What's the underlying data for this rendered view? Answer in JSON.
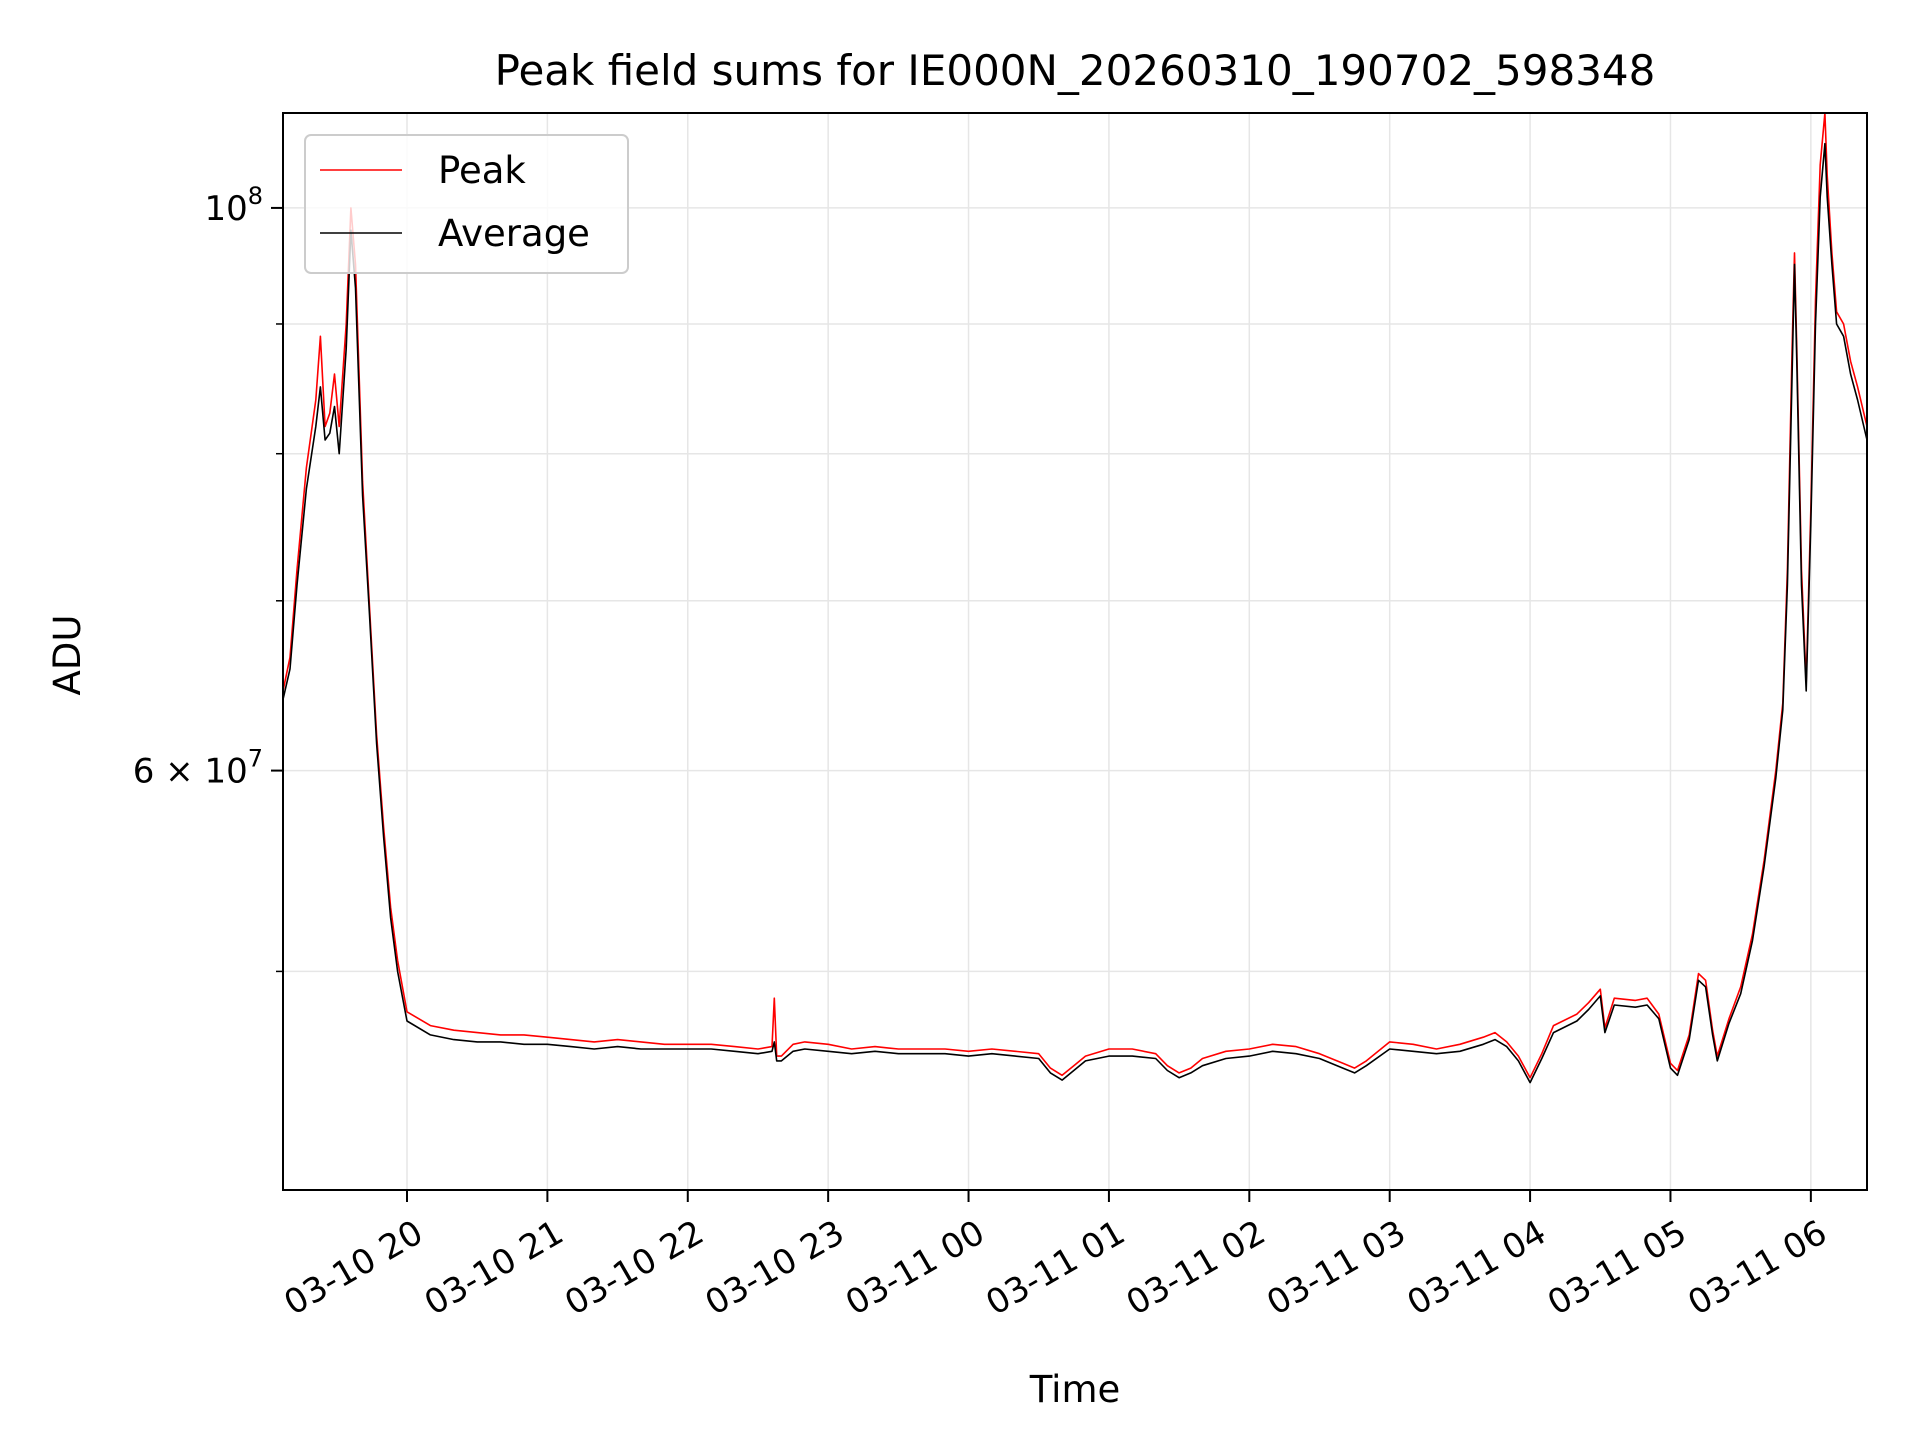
{
  "chart_data": {
    "type": "line",
    "title": "Peak field sums for IE000N_20260310_190702_598348",
    "xlabel": "Time",
    "ylabel": "ADU",
    "yscale": "log",
    "ylim": [
      41000000,
      109000000
    ],
    "xlim": [
      "2026-03-10T19:07",
      "2026-03-11T06:24"
    ],
    "grid": true,
    "legend_position": "upper left",
    "x_tick_labels": [
      "03-10 20",
      "03-10 21",
      "03-10 22",
      "03-10 23",
      "03-11 00",
      "03-11 01",
      "03-11 02",
      "03-11 03",
      "03-11 04",
      "03-11 05",
      "03-11 06"
    ],
    "y_tick_labels": [
      {
        "value": 100000000,
        "mantissa": "",
        "exp": "8"
      },
      {
        "value": 60000000,
        "mantissa": "6",
        "exp": "7"
      }
    ],
    "y_minor_ticks": [
      50000000,
      70000000,
      80000000,
      90000000
    ],
    "series": [
      {
        "name": "Peak",
        "color": "#ff0000",
        "points": [
          [
            "2026-03-10T19:07",
            64500000
          ],
          [
            "2026-03-10T19:10",
            66500000
          ],
          [
            "2026-03-10T19:13",
            72000000
          ],
          [
            "2026-03-10T19:17",
            79000000
          ],
          [
            "2026-03-10T19:21",
            84000000
          ],
          [
            "2026-03-10T19:23",
            89000000
          ],
          [
            "2026-03-10T19:25",
            82000000
          ],
          [
            "2026-03-10T19:27",
            83000000
          ],
          [
            "2026-03-10T19:29",
            86000000
          ],
          [
            "2026-03-10T19:31",
            82000000
          ],
          [
            "2026-03-10T19:34",
            90000000
          ],
          [
            "2026-03-10T19:36",
            100000000
          ],
          [
            "2026-03-10T19:38",
            95000000
          ],
          [
            "2026-03-10T19:41",
            78000000
          ],
          [
            "2026-03-10T19:44",
            69500000
          ],
          [
            "2026-03-10T19:47",
            62000000
          ],
          [
            "2026-03-10T19:50",
            57000000
          ],
          [
            "2026-03-10T19:53",
            53000000
          ],
          [
            "2026-03-10T19:56",
            50500000
          ],
          [
            "2026-03-10T20:00",
            48200000
          ],
          [
            "2026-03-10T20:10",
            47600000
          ],
          [
            "2026-03-10T20:20",
            47400000
          ],
          [
            "2026-03-10T20:30",
            47300000
          ],
          [
            "2026-03-10T20:40",
            47200000
          ],
          [
            "2026-03-10T20:50",
            47200000
          ],
          [
            "2026-03-10T21:00",
            47100000
          ],
          [
            "2026-03-10T21:10",
            47000000
          ],
          [
            "2026-03-10T21:20",
            46900000
          ],
          [
            "2026-03-10T21:30",
            47000000
          ],
          [
            "2026-03-10T21:40",
            46900000
          ],
          [
            "2026-03-10T21:50",
            46800000
          ],
          [
            "2026-03-10T22:00",
            46800000
          ],
          [
            "2026-03-10T22:10",
            46800000
          ],
          [
            "2026-03-10T22:20",
            46700000
          ],
          [
            "2026-03-10T22:30",
            46600000
          ],
          [
            "2026-03-10T22:36",
            46700000
          ],
          [
            "2026-03-10T22:37",
            48800000
          ],
          [
            "2026-03-10T22:38",
            46300000
          ],
          [
            "2026-03-10T22:40",
            46300000
          ],
          [
            "2026-03-10T22:45",
            46800000
          ],
          [
            "2026-03-10T22:50",
            46900000
          ],
          [
            "2026-03-10T23:00",
            46800000
          ],
          [
            "2026-03-10T23:10",
            46600000
          ],
          [
            "2026-03-10T23:20",
            46700000
          ],
          [
            "2026-03-10T23:30",
            46600000
          ],
          [
            "2026-03-10T23:40",
            46600000
          ],
          [
            "2026-03-10T23:50",
            46600000
          ],
          [
            "2026-03-11T00:00",
            46500000
          ],
          [
            "2026-03-11T00:10",
            46600000
          ],
          [
            "2026-03-11T00:20",
            46500000
          ],
          [
            "2026-03-11T00:30",
            46400000
          ],
          [
            "2026-03-11T00:35",
            45800000
          ],
          [
            "2026-03-11T00:40",
            45500000
          ],
          [
            "2026-03-11T00:45",
            45900000
          ],
          [
            "2026-03-11T00:50",
            46300000
          ],
          [
            "2026-03-11T01:00",
            46600000
          ],
          [
            "2026-03-11T01:10",
            46600000
          ],
          [
            "2026-03-11T01:20",
            46400000
          ],
          [
            "2026-03-11T01:25",
            45900000
          ],
          [
            "2026-03-11T01:30",
            45600000
          ],
          [
            "2026-03-11T01:35",
            45800000
          ],
          [
            "2026-03-11T01:40",
            46200000
          ],
          [
            "2026-03-11T01:50",
            46500000
          ],
          [
            "2026-03-11T02:00",
            46600000
          ],
          [
            "2026-03-11T02:10",
            46800000
          ],
          [
            "2026-03-11T02:20",
            46700000
          ],
          [
            "2026-03-11T02:30",
            46400000
          ],
          [
            "2026-03-11T02:40",
            46000000
          ],
          [
            "2026-03-11T02:45",
            45800000
          ],
          [
            "2026-03-11T02:50",
            46100000
          ],
          [
            "2026-03-11T03:00",
            46900000
          ],
          [
            "2026-03-11T03:10",
            46800000
          ],
          [
            "2026-03-11T03:20",
            46600000
          ],
          [
            "2026-03-11T03:30",
            46800000
          ],
          [
            "2026-03-11T03:40",
            47100000
          ],
          [
            "2026-03-11T03:45",
            47300000
          ],
          [
            "2026-03-11T03:50",
            46900000
          ],
          [
            "2026-03-11T03:55",
            46300000
          ],
          [
            "2026-03-11T04:00",
            45400000
          ],
          [
            "2026-03-11T04:05",
            46400000
          ],
          [
            "2026-03-11T04:10",
            47600000
          ],
          [
            "2026-03-11T04:20",
            48100000
          ],
          [
            "2026-03-11T04:25",
            48600000
          ],
          [
            "2026-03-11T04:30",
            49200000
          ],
          [
            "2026-03-11T04:32",
            47500000
          ],
          [
            "2026-03-11T04:36",
            48800000
          ],
          [
            "2026-03-11T04:45",
            48700000
          ],
          [
            "2026-03-11T04:50",
            48800000
          ],
          [
            "2026-03-11T04:55",
            48100000
          ],
          [
            "2026-03-11T05:00",
            46000000
          ],
          [
            "2026-03-11T05:03",
            45700000
          ],
          [
            "2026-03-11T05:08",
            47200000
          ],
          [
            "2026-03-11T05:12",
            49900000
          ],
          [
            "2026-03-11T05:15",
            49600000
          ],
          [
            "2026-03-11T05:18",
            47400000
          ],
          [
            "2026-03-11T05:20",
            46300000
          ],
          [
            "2026-03-11T05:25",
            47900000
          ],
          [
            "2026-03-11T05:30",
            49300000
          ],
          [
            "2026-03-11T05:35",
            51700000
          ],
          [
            "2026-03-11T05:40",
            55300000
          ],
          [
            "2026-03-11T05:45",
            60000000
          ],
          [
            "2026-03-11T05:48",
            63800000
          ],
          [
            "2026-03-11T05:50",
            72000000
          ],
          [
            "2026-03-11T05:52",
            88000000
          ],
          [
            "2026-03-11T05:53",
            96000000
          ],
          [
            "2026-03-11T05:54",
            88000000
          ],
          [
            "2026-03-11T05:56",
            72000000
          ],
          [
            "2026-03-11T05:58",
            65000000
          ],
          [
            "2026-03-11T06:00",
            76000000
          ],
          [
            "2026-03-11T06:02",
            92000000
          ],
          [
            "2026-03-11T06:04",
            104000000
          ],
          [
            "2026-03-11T06:06",
            109000000
          ],
          [
            "2026-03-11T06:07",
            103000000
          ],
          [
            "2026-03-11T06:09",
            96000000
          ],
          [
            "2026-03-11T06:11",
            91000000
          ],
          [
            "2026-03-11T06:14",
            90000000
          ],
          [
            "2026-03-11T06:17",
            87000000
          ],
          [
            "2026-03-11T06:20",
            85000000
          ],
          [
            "2026-03-11T06:24",
            82000000
          ]
        ]
      },
      {
        "name": "Average",
        "color": "#000000",
        "points": [
          [
            "2026-03-10T19:07",
            64000000
          ],
          [
            "2026-03-10T19:10",
            65800000
          ],
          [
            "2026-03-10T19:13",
            71000000
          ],
          [
            "2026-03-10T19:17",
            77500000
          ],
          [
            "2026-03-10T19:21",
            82000000
          ],
          [
            "2026-03-10T19:23",
            85000000
          ],
          [
            "2026-03-10T19:25",
            81000000
          ],
          [
            "2026-03-10T19:27",
            81500000
          ],
          [
            "2026-03-10T19:29",
            83500000
          ],
          [
            "2026-03-10T19:31",
            80000000
          ],
          [
            "2026-03-10T19:34",
            88000000
          ],
          [
            "2026-03-10T19:36",
            98000000
          ],
          [
            "2026-03-10T19:38",
            93000000
          ],
          [
            "2026-03-10T19:41",
            77000000
          ],
          [
            "2026-03-10T19:44",
            69000000
          ],
          [
            "2026-03-10T19:47",
            61500000
          ],
          [
            "2026-03-10T19:50",
            56500000
          ],
          [
            "2026-03-10T19:53",
            52500000
          ],
          [
            "2026-03-10T19:56",
            50000000
          ],
          [
            "2026-03-10T20:00",
            47800000
          ],
          [
            "2026-03-10T20:10",
            47200000
          ],
          [
            "2026-03-10T20:20",
            47000000
          ],
          [
            "2026-03-10T20:30",
            46900000
          ],
          [
            "2026-03-10T20:40",
            46900000
          ],
          [
            "2026-03-10T20:50",
            46800000
          ],
          [
            "2026-03-10T21:00",
            46800000
          ],
          [
            "2026-03-10T21:10",
            46700000
          ],
          [
            "2026-03-10T21:20",
            46600000
          ],
          [
            "2026-03-10T21:30",
            46700000
          ],
          [
            "2026-03-10T21:40",
            46600000
          ],
          [
            "2026-03-10T21:50",
            46600000
          ],
          [
            "2026-03-10T22:00",
            46600000
          ],
          [
            "2026-03-10T22:10",
            46600000
          ],
          [
            "2026-03-10T22:20",
            46500000
          ],
          [
            "2026-03-10T22:30",
            46400000
          ],
          [
            "2026-03-10T22:36",
            46500000
          ],
          [
            "2026-03-10T22:37",
            46900000
          ],
          [
            "2026-03-10T22:38",
            46100000
          ],
          [
            "2026-03-10T22:40",
            46100000
          ],
          [
            "2026-03-10T22:45",
            46500000
          ],
          [
            "2026-03-10T22:50",
            46600000
          ],
          [
            "2026-03-10T23:00",
            46500000
          ],
          [
            "2026-03-10T23:10",
            46400000
          ],
          [
            "2026-03-10T23:20",
            46500000
          ],
          [
            "2026-03-10T23:30",
            46400000
          ],
          [
            "2026-03-10T23:40",
            46400000
          ],
          [
            "2026-03-10T23:50",
            46400000
          ],
          [
            "2026-03-11T00:00",
            46300000
          ],
          [
            "2026-03-11T00:10",
            46400000
          ],
          [
            "2026-03-11T00:20",
            46300000
          ],
          [
            "2026-03-11T00:30",
            46200000
          ],
          [
            "2026-03-11T00:35",
            45600000
          ],
          [
            "2026-03-11T00:40",
            45300000
          ],
          [
            "2026-03-11T00:45",
            45700000
          ],
          [
            "2026-03-11T00:50",
            46100000
          ],
          [
            "2026-03-11T01:00",
            46300000
          ],
          [
            "2026-03-11T01:10",
            46300000
          ],
          [
            "2026-03-11T01:20",
            46200000
          ],
          [
            "2026-03-11T01:25",
            45700000
          ],
          [
            "2026-03-11T01:30",
            45400000
          ],
          [
            "2026-03-11T01:35",
            45600000
          ],
          [
            "2026-03-11T01:40",
            45900000
          ],
          [
            "2026-03-11T01:50",
            46200000
          ],
          [
            "2026-03-11T02:00",
            46300000
          ],
          [
            "2026-03-11T02:10",
            46500000
          ],
          [
            "2026-03-11T02:20",
            46400000
          ],
          [
            "2026-03-11T02:30",
            46200000
          ],
          [
            "2026-03-11T02:40",
            45800000
          ],
          [
            "2026-03-11T02:45",
            45600000
          ],
          [
            "2026-03-11T02:50",
            45900000
          ],
          [
            "2026-03-11T03:00",
            46600000
          ],
          [
            "2026-03-11T03:10",
            46500000
          ],
          [
            "2026-03-11T03:20",
            46400000
          ],
          [
            "2026-03-11T03:30",
            46500000
          ],
          [
            "2026-03-11T03:40",
            46800000
          ],
          [
            "2026-03-11T03:45",
            47000000
          ],
          [
            "2026-03-11T03:50",
            46700000
          ],
          [
            "2026-03-11T03:55",
            46100000
          ],
          [
            "2026-03-11T04:00",
            45200000
          ],
          [
            "2026-03-11T04:05",
            46200000
          ],
          [
            "2026-03-11T04:10",
            47300000
          ],
          [
            "2026-03-11T04:20",
            47800000
          ],
          [
            "2026-03-11T04:25",
            48300000
          ],
          [
            "2026-03-11T04:30",
            48900000
          ],
          [
            "2026-03-11T04:32",
            47300000
          ],
          [
            "2026-03-11T04:36",
            48500000
          ],
          [
            "2026-03-11T04:45",
            48400000
          ],
          [
            "2026-03-11T04:50",
            48500000
          ],
          [
            "2026-03-11T04:55",
            47900000
          ],
          [
            "2026-03-11T05:00",
            45800000
          ],
          [
            "2026-03-11T05:03",
            45500000
          ],
          [
            "2026-03-11T05:08",
            47000000
          ],
          [
            "2026-03-11T05:12",
            49600000
          ],
          [
            "2026-03-11T05:15",
            49300000
          ],
          [
            "2026-03-11T05:18",
            47200000
          ],
          [
            "2026-03-11T05:20",
            46100000
          ],
          [
            "2026-03-11T05:25",
            47700000
          ],
          [
            "2026-03-11T05:30",
            49000000
          ],
          [
            "2026-03-11T05:35",
            51400000
          ],
          [
            "2026-03-11T05:40",
            55000000
          ],
          [
            "2026-03-11T05:45",
            59600000
          ],
          [
            "2026-03-11T05:48",
            63400000
          ],
          [
            "2026-03-11T05:50",
            71000000
          ],
          [
            "2026-03-11T05:52",
            86000000
          ],
          [
            "2026-03-11T05:53",
            95000000
          ],
          [
            "2026-03-11T05:54",
            87000000
          ],
          [
            "2026-03-11T05:56",
            71000000
          ],
          [
            "2026-03-11T05:58",
            64500000
          ],
          [
            "2026-03-11T06:00",
            75000000
          ],
          [
            "2026-03-11T06:02",
            90000000
          ],
          [
            "2026-03-11T06:04",
            101000000
          ],
          [
            "2026-03-11T06:06",
            106000000
          ],
          [
            "2026-03-11T06:07",
            101000000
          ],
          [
            "2026-03-11T06:09",
            95000000
          ],
          [
            "2026-03-11T06:11",
            90000000
          ],
          [
            "2026-03-11T06:14",
            89000000
          ],
          [
            "2026-03-11T06:17",
            86000000
          ],
          [
            "2026-03-11T06:20",
            84000000
          ],
          [
            "2026-03-11T06:24",
            81000000
          ]
        ]
      }
    ]
  }
}
